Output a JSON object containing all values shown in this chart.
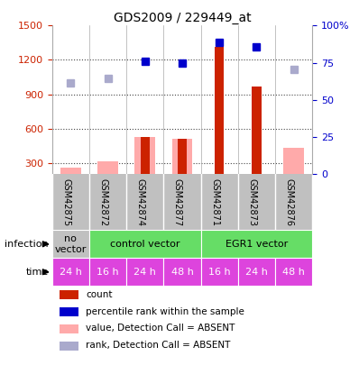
{
  "title": "GDS2009 / 229449_at",
  "samples": [
    "GSM42875",
    "GSM42872",
    "GSM42874",
    "GSM42877",
    "GSM42871",
    "GSM42873",
    "GSM42876"
  ],
  "bar_values_red": [
    null,
    null,
    530,
    510,
    1310,
    970,
    null
  ],
  "bar_values_pink": [
    255,
    310,
    530,
    510,
    null,
    null,
    430
  ],
  "dot_values_blue_left_scale": [
    null,
    null,
    1190,
    1170,
    1350,
    1310,
    null
  ],
  "dot_values_lightblue_left_scale": [
    1000,
    1040,
    null,
    null,
    null,
    null,
    1120
  ],
  "ylim_left": [
    200,
    1500
  ],
  "ylim_right": [
    0,
    100
  ],
  "yticks_left": [
    300,
    600,
    900,
    1200,
    1500
  ],
  "yticks_right": [
    0,
    25,
    50,
    75,
    100
  ],
  "infection_groups": [
    {
      "label": "no\nvector",
      "start": 0,
      "end": 1,
      "color": "#c0c0c0"
    },
    {
      "label": "control vector",
      "start": 1,
      "end": 4,
      "color": "#66dd66"
    },
    {
      "label": "EGR1 vector",
      "start": 4,
      "end": 7,
      "color": "#66dd66"
    }
  ],
  "time_labels": [
    "24 h",
    "16 h",
    "24 h",
    "48 h",
    "16 h",
    "24 h",
    "48 h"
  ],
  "time_color": "#dd44dd",
  "bar_width": 0.55,
  "red_bar_width": 0.25,
  "color_red": "#cc2200",
  "color_pink": "#ffaaaa",
  "color_blue": "#0000cc",
  "color_lightblue": "#aaaacc",
  "grid_color": "#444444",
  "sample_bg": "#c0c0c0",
  "plot_bg": "#ffffff",
  "legend_items": [
    {
      "color": "#cc2200",
      "label": "count"
    },
    {
      "color": "#0000cc",
      "label": "percentile rank within the sample"
    },
    {
      "color": "#ffaaaa",
      "label": "value, Detection Call = ABSENT"
    },
    {
      "color": "#aaaacc",
      "label": "rank, Detection Call = ABSENT"
    }
  ]
}
